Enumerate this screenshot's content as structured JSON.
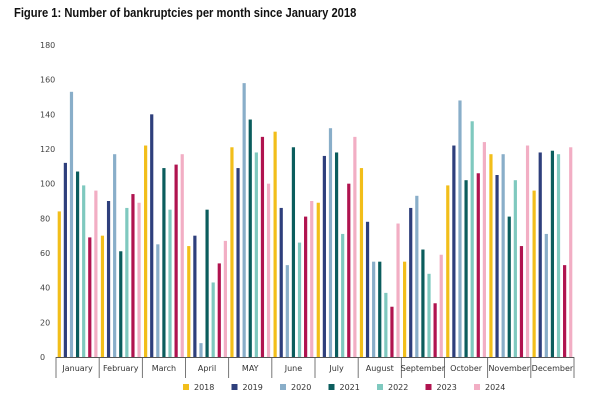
{
  "chart_data": {
    "type": "bar",
    "title": "Figure 1: Number of bankruptcies per month since January 2018",
    "xlabel": "",
    "ylabel": "",
    "ylim": [
      0,
      180
    ],
    "yticks": [
      0,
      20,
      40,
      60,
      80,
      100,
      120,
      140,
      160,
      180
    ],
    "grid": false,
    "legend_position": "bottom",
    "categories": [
      "January",
      "February",
      "March",
      "April",
      "MAY",
      "June",
      "July",
      "August",
      "September",
      "October",
      "November",
      "December"
    ],
    "series": [
      {
        "name": "2018",
        "color": "#f2be1a",
        "values": [
          84,
          70,
          122,
          64,
          121,
          130,
          89,
          109,
          55,
          99,
          117,
          96
        ]
      },
      {
        "name": "2019",
        "color": "#2e3f7c",
        "values": [
          112,
          90,
          140,
          70,
          109,
          86,
          116,
          78,
          86,
          122,
          105,
          118
        ]
      },
      {
        "name": "2020",
        "color": "#89aec9",
        "values": [
          153,
          117,
          65,
          8,
          158,
          53,
          132,
          55,
          93,
          148,
          117,
          71
        ]
      },
      {
        "name": "2021",
        "color": "#0b5d5d",
        "values": [
          107,
          61,
          109,
          85,
          137,
          121,
          118,
          55,
          62,
          102,
          81,
          119
        ]
      },
      {
        "name": "2022",
        "color": "#7fc9bf",
        "values": [
          99,
          86,
          85,
          43,
          118,
          66,
          71,
          37,
          48,
          136,
          102,
          117
        ]
      },
      {
        "name": "2023",
        "color": "#b0134f",
        "values": [
          69,
          94,
          111,
          54,
          127,
          81,
          100,
          29,
          31,
          106,
          64,
          53
        ]
      },
      {
        "name": "2024",
        "color": "#f2aec4",
        "values": [
          96,
          89,
          117,
          67,
          100,
          90,
          127,
          77,
          59,
          124,
          122,
          121
        ]
      }
    ]
  }
}
